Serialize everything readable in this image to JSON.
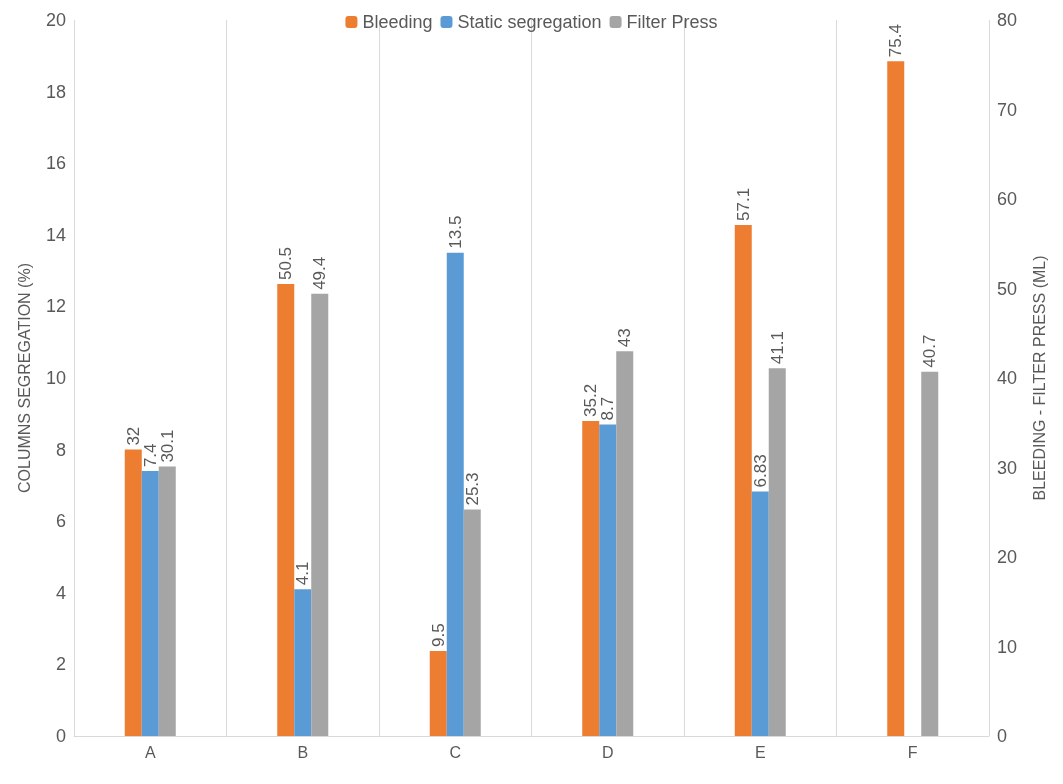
{
  "chart_data": {
    "type": "bar",
    "categories": [
      "A",
      "B",
      "C",
      "D",
      "E",
      "F"
    ],
    "series": [
      {
        "name": "Bleeding",
        "color": "#ed7d31",
        "axis": "y2",
        "values": [
          32,
          50.5,
          9.5,
          35.2,
          57.1,
          75.4
        ]
      },
      {
        "name": "Static segregation",
        "color": "#5b9bd5",
        "values": [
          7.4,
          4.1,
          13.5,
          8.7,
          6.83,
          null
        ]
      },
      {
        "name": "Filter Press",
        "color": "#a5a5a5",
        "axis": "y2",
        "values": [
          30.1,
          49.4,
          25.3,
          43,
          41.1,
          40.7
        ]
      }
    ],
    "ylabel": "COLUMNS SEGREGATION (%)",
    "y2label": "BLEEDING - FILTER PRESS (ML)",
    "ylim": [
      0,
      20
    ],
    "yticks": [
      0,
      2,
      4,
      6,
      8,
      10,
      12,
      14,
      16,
      18,
      20
    ],
    "y2lim": [
      0,
      80
    ],
    "y2ticks": [
      0,
      10,
      20,
      30,
      40,
      50,
      60,
      70,
      80
    ],
    "data_labels": true,
    "grid": "x",
    "legend": "top"
  }
}
